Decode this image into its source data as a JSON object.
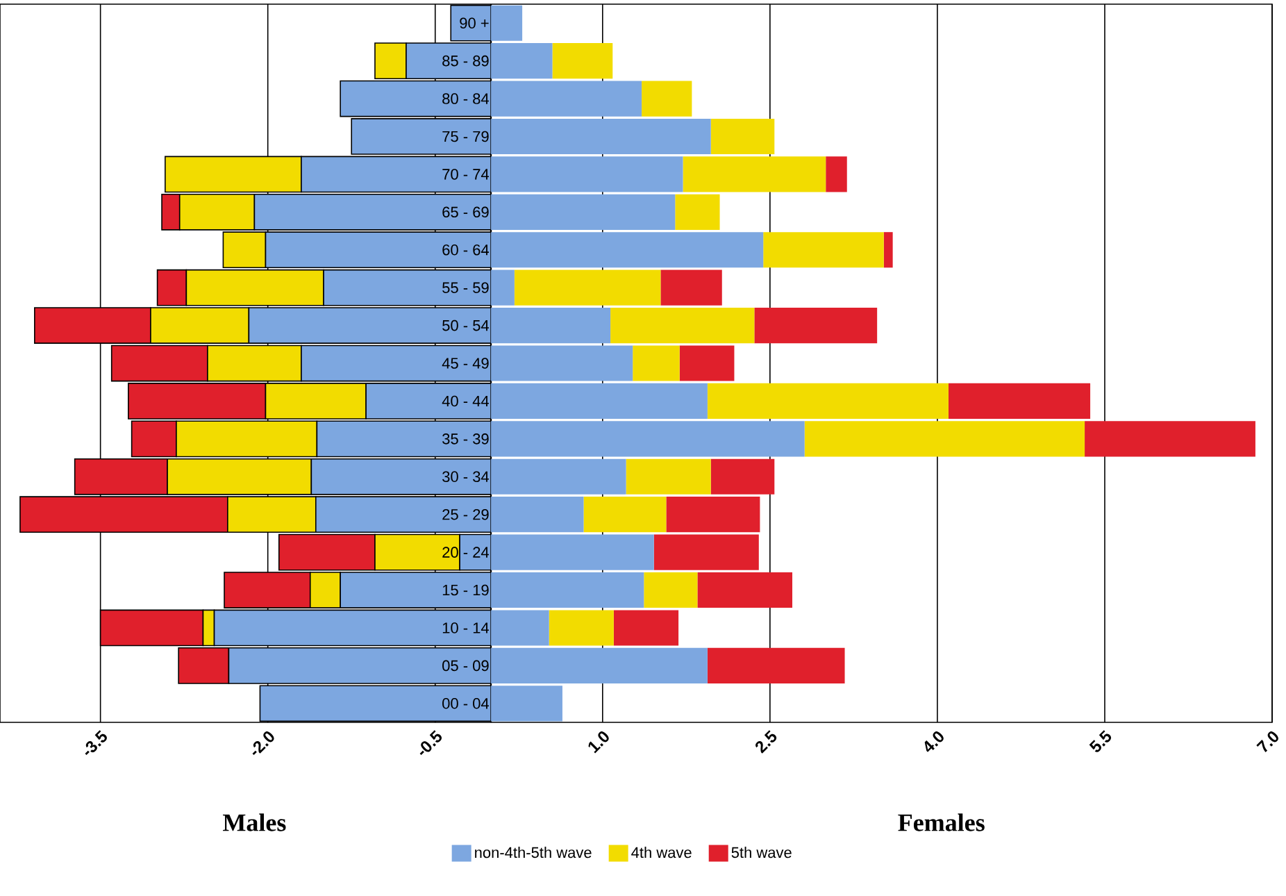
{
  "chart_data": {
    "type": "bar",
    "orientation": "horizontal",
    "stacked": true,
    "categories": [
      "90 +",
      "85 - 89",
      "80 - 84",
      "75 - 79",
      "70 - 74",
      "65 - 69",
      "60 - 64",
      "55 - 59",
      "50 - 54",
      "45 - 49",
      "40 - 44",
      "35 - 39",
      "30 - 34",
      "25 - 29",
      "20 - 24",
      "15 - 19",
      "10 - 14",
      "05 - 09",
      "00 - 04"
    ],
    "series": [
      {
        "color": "#7da7e0",
        "values": [
          -0.36,
          -0.76,
          -1.35,
          -1.25,
          -1.7,
          -2.12,
          -2.02,
          -1.5,
          -2.17,
          -1.7,
          -1.12,
          -1.56,
          -1.61,
          -1.57,
          -0.28,
          -1.35,
          -2.48,
          -2.35,
          -2.07
        ]
      },
      {
        "color": "#f2dc00",
        "values": [
          0,
          -0.28,
          0,
          0,
          -1.22,
          -0.67,
          -0.38,
          -1.23,
          -0.88,
          -0.84,
          -0.9,
          -1.26,
          -1.29,
          -0.79,
          -0.76,
          -0.27,
          -0.1,
          0,
          0
        ]
      },
      {
        "color": "#e0202c",
        "values": [
          0,
          0,
          0,
          0,
          0,
          -0.16,
          0,
          -0.26,
          -1.04,
          -0.86,
          -1.23,
          -0.4,
          -0.83,
          -1.86,
          -0.86,
          -0.77,
          -0.92,
          -0.45,
          0
        ]
      },
      {
        "name": "non-4th-5th wave",
        "color": "#7da7e0",
        "values": [
          0.28,
          0.55,
          1.35,
          1.97,
          1.72,
          1.65,
          2.44,
          0.21,
          1.07,
          1.27,
          1.94,
          2.81,
          1.21,
          0.83,
          1.46,
          1.37,
          0.52,
          1.94,
          0.64
        ]
      },
      {
        "name": "4th wave",
        "color": "#f2dc00",
        "values": [
          0,
          0.54,
          0.45,
          0.57,
          1.28,
          0.4,
          1.08,
          1.31,
          1.29,
          0.42,
          2.16,
          2.51,
          0.76,
          0.74,
          0,
          0.48,
          0.58,
          0,
          0
        ]
      },
      {
        "name": "5th wave",
        "color": "#e0202c",
        "values": [
          0,
          0,
          0,
          0,
          0.19,
          0,
          0.08,
          0.55,
          1.1,
          0.49,
          1.27,
          1.53,
          0.57,
          0.84,
          0.94,
          0.85,
          0.58,
          1.23,
          0
        ]
      }
    ],
    "xlim": [
      -4.4,
      7.0
    ],
    "xticks": [
      -3.5,
      {
        "value": -2.0,
        "label": "-2.0"
      },
      -0.5,
      {
        "value": 1.0,
        "label": "1.0"
      },
      2.5,
      {
        "value": 4.0,
        "label": "4.0"
      },
      5.5,
      {
        "value": 7.0,
        "label": "7.0"
      }
    ],
    "grid": "x",
    "legend": "bottom",
    "annotations": [
      "Males",
      "Females"
    ]
  }
}
